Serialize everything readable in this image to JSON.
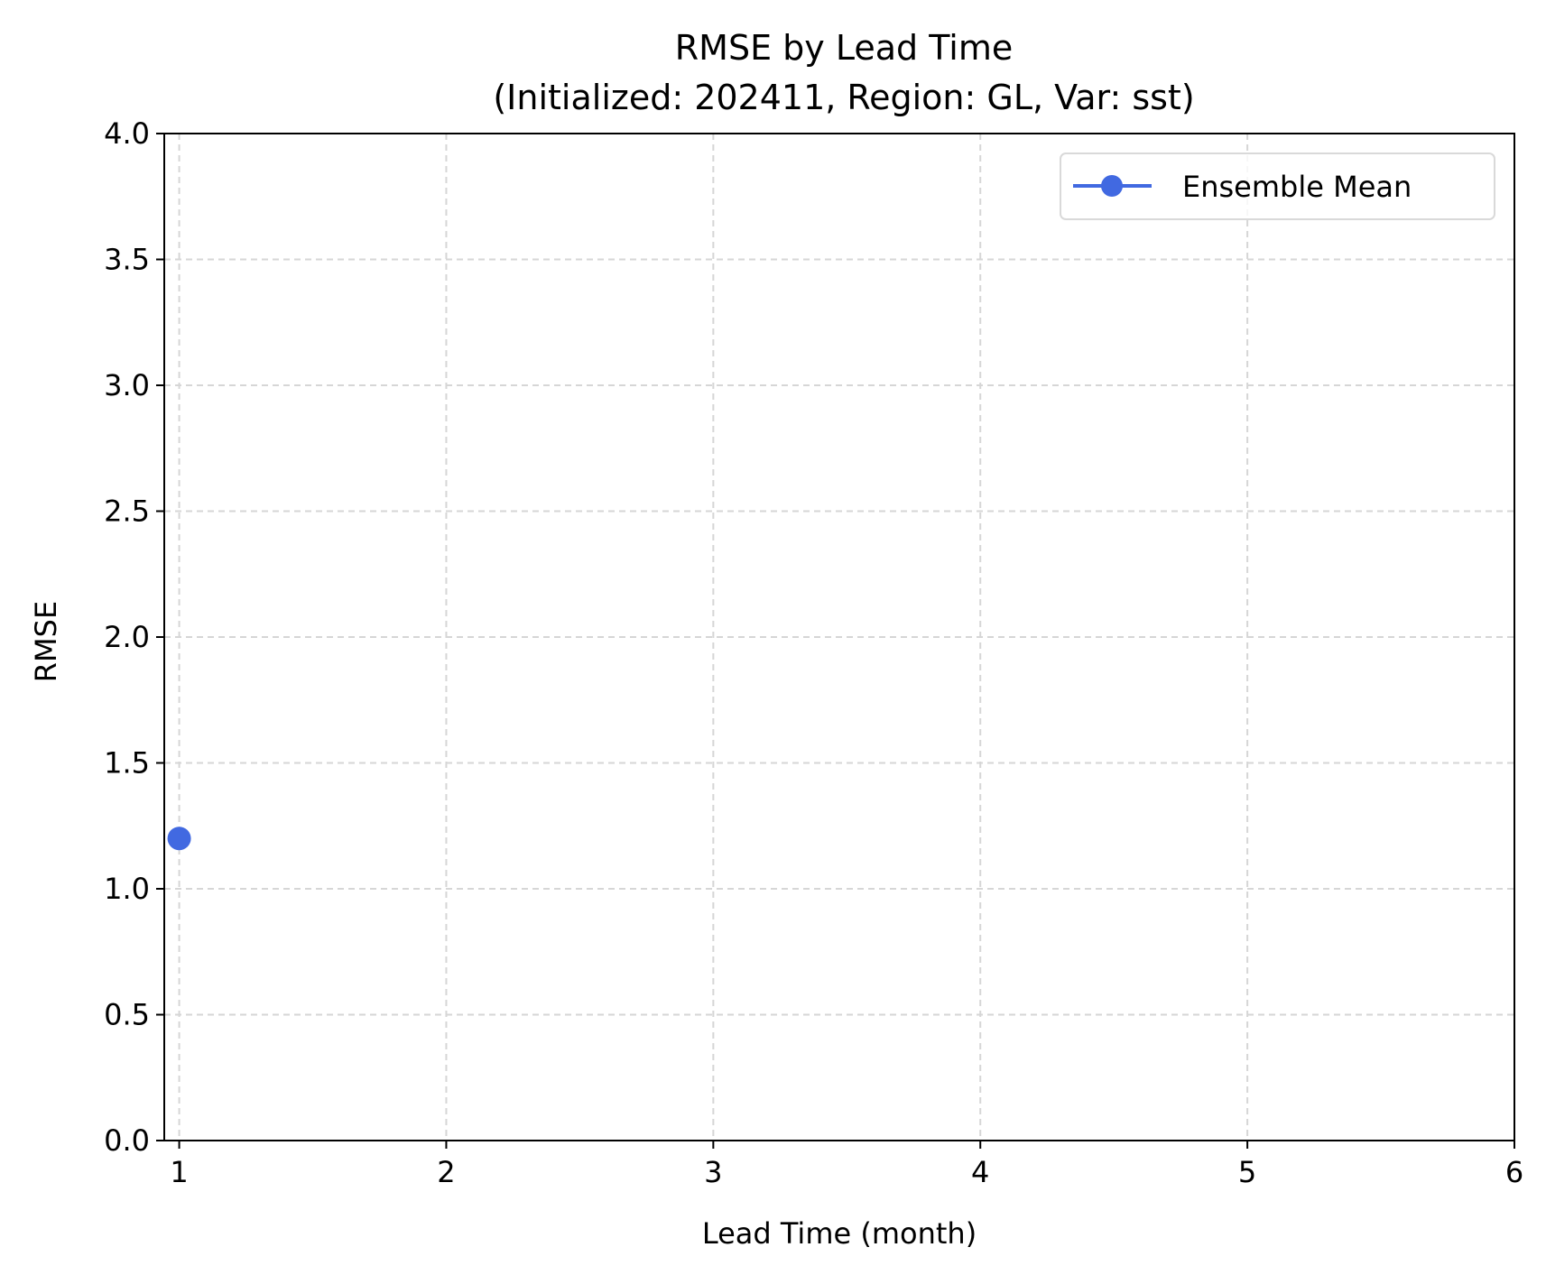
{
  "chart_data": {
    "type": "line",
    "title_line1": "RMSE by Lead Time",
    "title_line2": "(Initialized: 202411, Region: GL, Var: sst)",
    "xlabel": "Lead Time (month)",
    "ylabel": "RMSE",
    "xlim": [
      0.944,
      6
    ],
    "ylim": [
      0,
      4
    ],
    "x_ticks": [
      1,
      2,
      3,
      4,
      5,
      6
    ],
    "x_tick_labels": [
      "1",
      "2",
      "3",
      "4",
      "5",
      "6"
    ],
    "y_ticks": [
      0,
      0.5,
      1,
      1.5,
      2,
      2.5,
      3,
      3.5,
      4
    ],
    "y_tick_labels": [
      "0.0",
      "0.5",
      "1.0",
      "1.5",
      "2.0",
      "2.5",
      "3.0",
      "3.5",
      "4.0"
    ],
    "grid": true,
    "legend_position": "top-right",
    "series": [
      {
        "name": "Ensemble Mean",
        "color": "#4169E1",
        "x": [
          1
        ],
        "y": [
          1.2
        ]
      }
    ]
  }
}
